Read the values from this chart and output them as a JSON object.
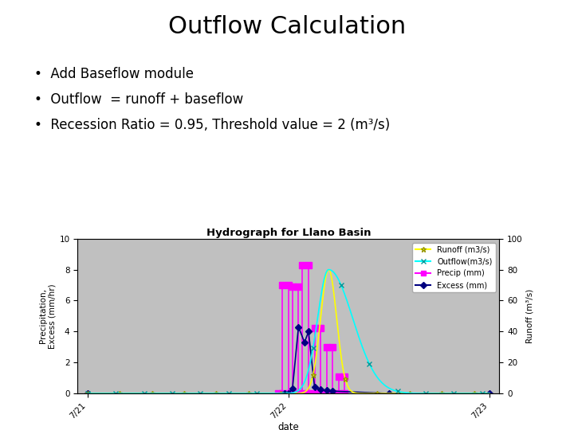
{
  "title": "Outflow Calculation",
  "bullets": [
    "Add Baseflow module",
    "Outflow  = runoff + baseflow",
    "Recession Ratio = 0.95, Threshold value = 2 (m³/s)"
  ],
  "chart_title": "Hydrograph for Llano Basin",
  "xlabel": "date",
  "ylabel_left": "Precipitation,\nExcess (mm/hr)",
  "ylabel_right": "Runoff (m³/s)",
  "xtick_labels": [
    "7/21",
    "7/22",
    "7/23"
  ],
  "ylim_left": [
    0,
    10
  ],
  "ylim_right": [
    0,
    100
  ],
  "yticks_left": [
    0,
    2,
    4,
    6,
    8,
    10
  ],
  "yticks_right": [
    0,
    20,
    40,
    60,
    80,
    100
  ],
  "background_color": "#ffffff",
  "plot_bg_color": "#c0c0c0",
  "chart_border_color": "#808080",
  "legend_entries": [
    "Runoff (m3/s)",
    "Outflow(m3/s)",
    "Precip (mm)",
    "Excess (mm)"
  ],
  "runoff_color": "#ffff00",
  "outflow_color": "#00ffff",
  "precip_color": "#ff00ff",
  "excess_color": "#000080",
  "title_fontsize": 22,
  "bullet_fontsize": 12
}
